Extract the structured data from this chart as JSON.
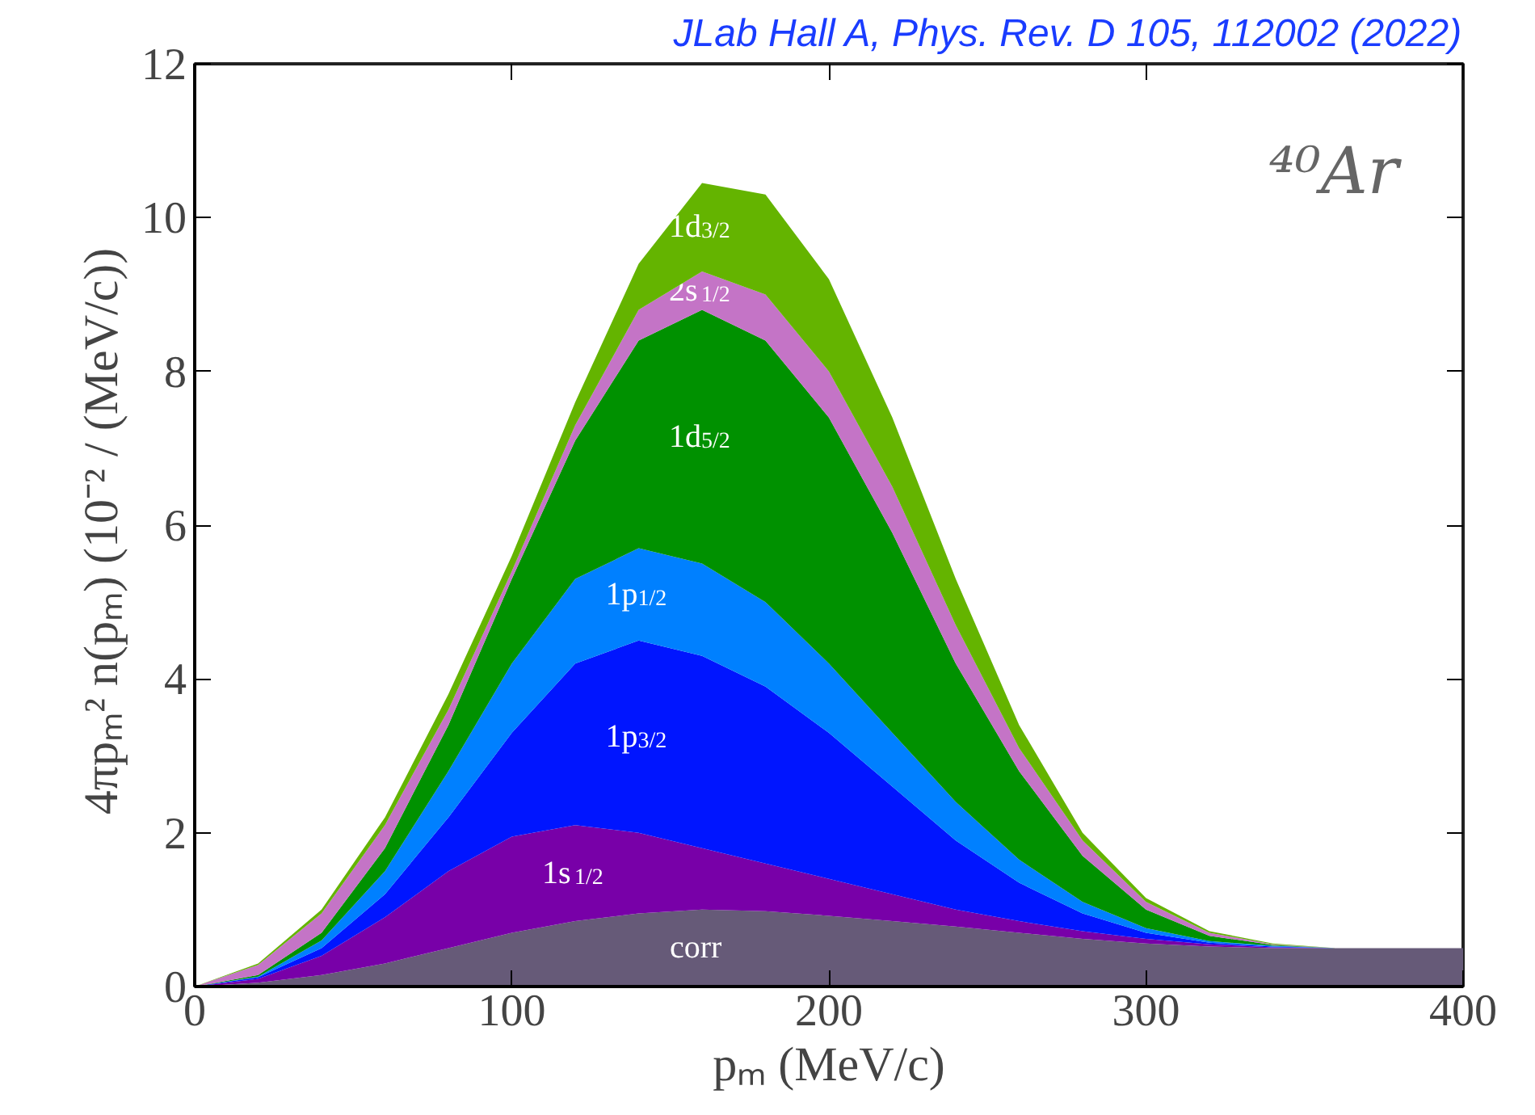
{
  "chart_data": {
    "type": "area",
    "stacked": true,
    "title": "JLab Hall A, Phys. Rev. D 105, 112002 (2022)",
    "xlabel": "pₘ (MeV/c)",
    "ylabel": "4πpₘ² n(pₘ)  (10⁻² / (MeV/c))",
    "annotations": [
      "⁴⁰Ar"
    ],
    "x": [
      0,
      20,
      40,
      60,
      80,
      100,
      120,
      140,
      160,
      180,
      200,
      220,
      240,
      260,
      280,
      300,
      320,
      340,
      360,
      380,
      400
    ],
    "series": [
      {
        "name": "corr",
        "color": "#665a78",
        "values": [
          0,
          0.05,
          0.15,
          0.3,
          0.5,
          0.7,
          0.85,
          0.95,
          1.0,
          0.98,
          0.92,
          0.85,
          0.78,
          0.7,
          0.62,
          0.56,
          0.52,
          0.5,
          0.5,
          0.5,
          0.5
        ]
      },
      {
        "name": "1s$_{1/2}$",
        "color": "#7800a8",
        "values": [
          0,
          0.05,
          0.25,
          0.6,
          1.0,
          1.25,
          1.25,
          1.05,
          0.8,
          0.62,
          0.48,
          0.35,
          0.22,
          0.15,
          0.1,
          0.06,
          0.03,
          0.01,
          0,
          0,
          0
        ]
      },
      {
        "name": "1p$_{3/2}$",
        "color": "#0015ff",
        "values": [
          0,
          0.02,
          0.1,
          0.3,
          0.7,
          1.35,
          2.1,
          2.5,
          2.5,
          2.3,
          1.9,
          1.4,
          0.9,
          0.5,
          0.23,
          0.08,
          0.02,
          0.01,
          0,
          0,
          0
        ]
      },
      {
        "name": "1p$_{1/2}$",
        "color": "#0080ff",
        "values": [
          0,
          0.01,
          0.1,
          0.3,
          0.6,
          0.9,
          1.1,
          1.2,
          1.2,
          1.1,
          0.9,
          0.7,
          0.5,
          0.3,
          0.15,
          0.06,
          0.02,
          0.01,
          0,
          0,
          0
        ]
      },
      {
        "name": "1d$_{5/2}$",
        "color": "#009100",
        "values": [
          0,
          0.02,
          0.1,
          0.3,
          0.6,
          1.1,
          1.8,
          2.7,
          3.3,
          3.4,
          3.2,
          2.6,
          1.8,
          1.15,
          0.6,
          0.24,
          0.07,
          0.01,
          0,
          0,
          0
        ]
      },
      {
        "name": "2s$_{1/2}$",
        "color": "#c474c6",
        "values": [
          0,
          0.13,
          0.25,
          0.3,
          0.2,
          0.1,
          0.2,
          0.4,
          0.5,
          0.6,
          0.6,
          0.6,
          0.5,
          0.3,
          0.2,
          0.1,
          0.04,
          0.01,
          0,
          0,
          0
        ]
      },
      {
        "name": "1d$_{3/2}$",
        "color": "#64b400",
        "values": [
          0,
          0.02,
          0.05,
          0.1,
          0.2,
          0.2,
          0.3,
          0.6,
          1.15,
          1.3,
          1.2,
          0.9,
          0.6,
          0.3,
          0.1,
          0.05,
          0.02,
          0.01,
          0,
          0,
          0
        ]
      }
    ],
    "xlim": [
      0,
      400
    ],
    "ylim": [
      0,
      12
    ],
    "xticks": [
      0,
      100,
      200,
      300,
      400
    ],
    "yticks": [
      0,
      2,
      4,
      6,
      8,
      10,
      12
    ],
    "grid": false
  }
}
